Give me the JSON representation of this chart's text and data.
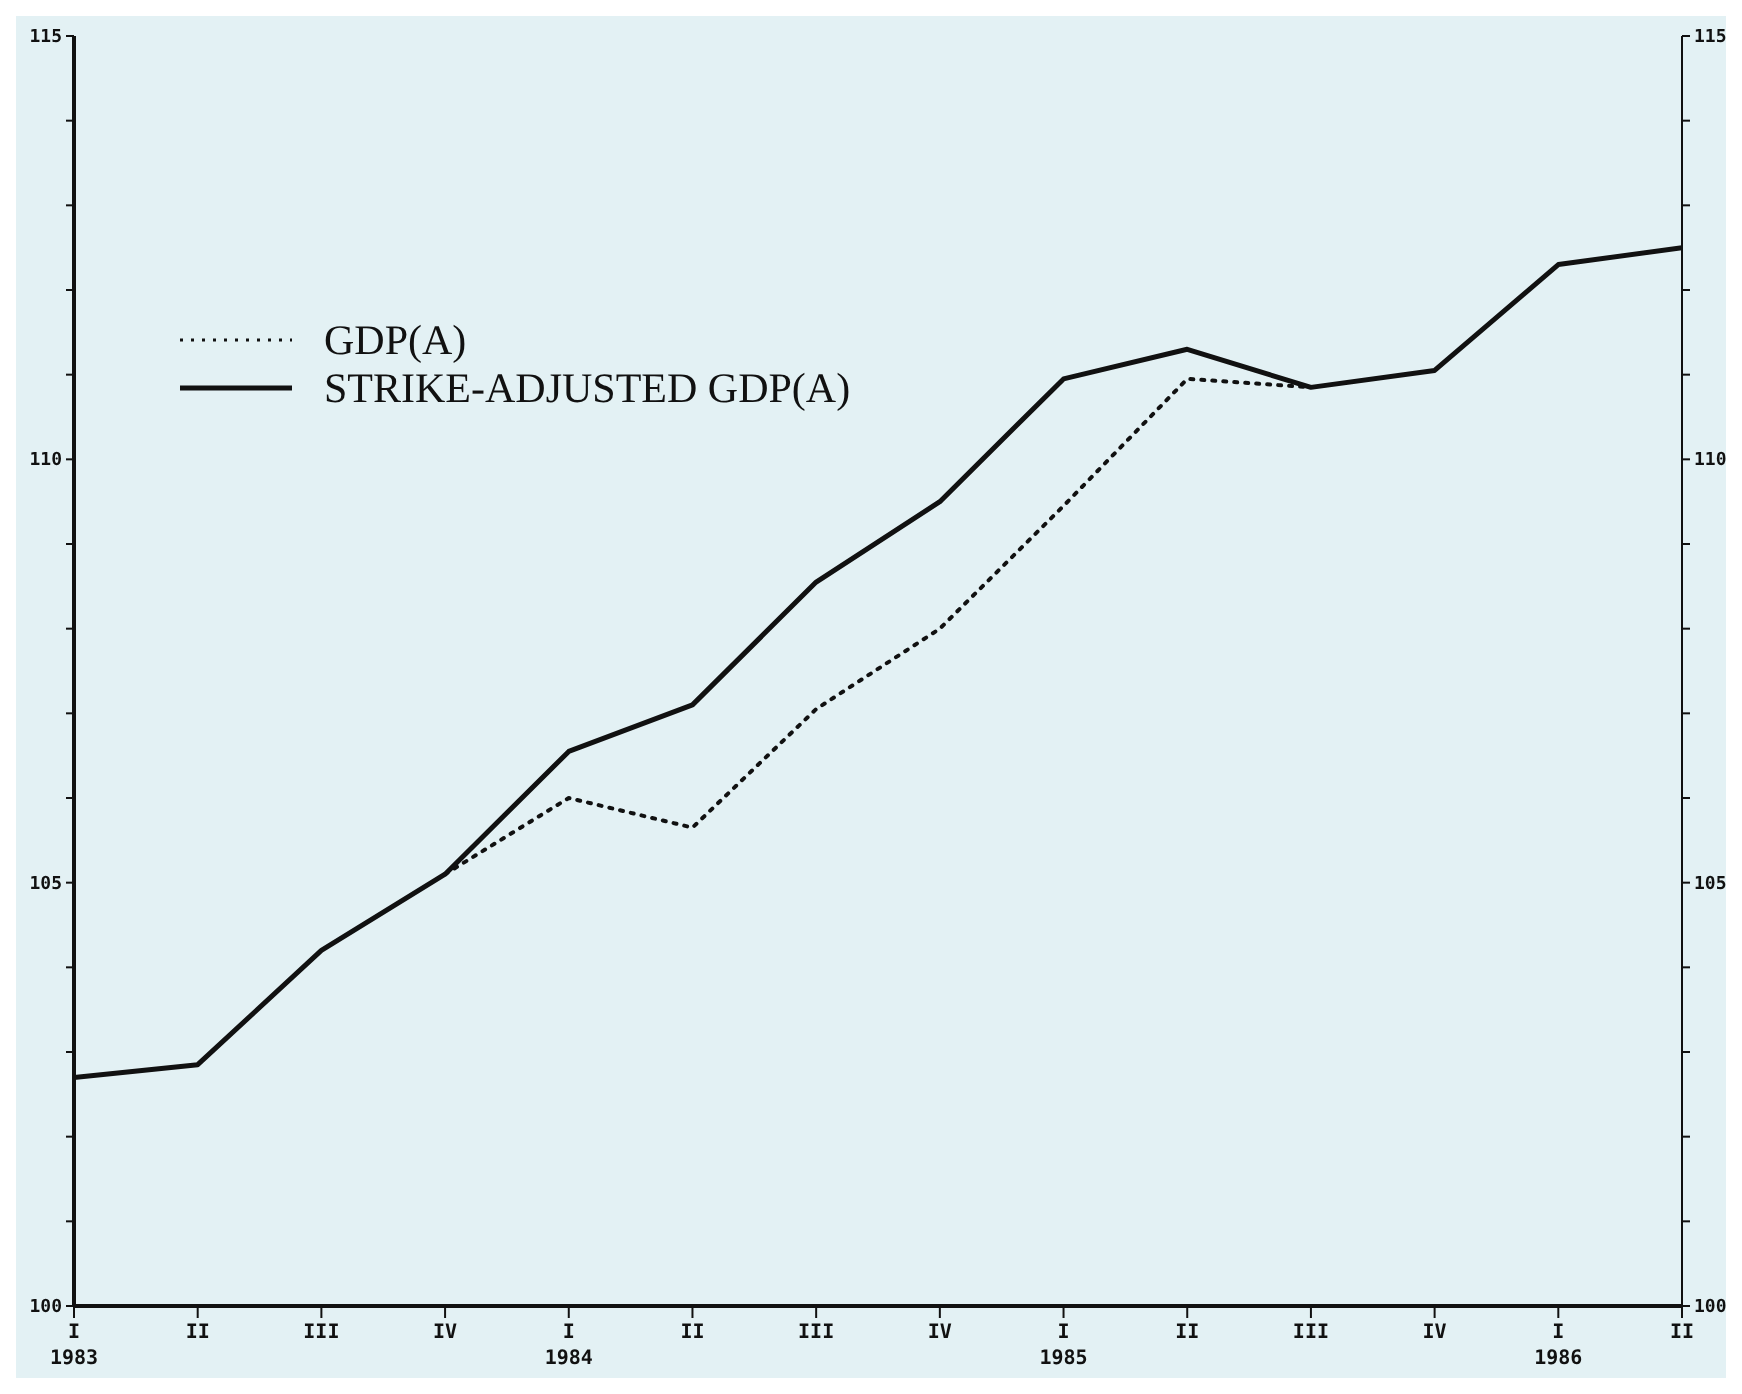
{
  "chart_data": {
    "type": "line",
    "categories": [
      "I\n1983",
      "II",
      "III",
      "IV",
      "I\n1984",
      "II",
      "III",
      "IV",
      "I\n1985",
      "II",
      "III",
      "IV",
      "I\n1986",
      "II"
    ],
    "series": [
      {
        "name": "GDP(A)",
        "color": "#111111",
        "line_style": "dotted",
        "values": [
          null,
          null,
          null,
          105.1,
          106.0,
          105.65,
          107.05,
          108.0,
          109.45,
          110.95,
          110.85,
          null,
          null,
          null
        ]
      },
      {
        "name": "STRIKE-ADJUSTED GDP(A)",
        "color": "#111111",
        "line_style": "solid",
        "values": [
          102.7,
          102.85,
          104.2,
          105.1,
          106.55,
          107.1,
          108.55,
          109.5,
          110.95,
          111.3,
          110.85,
          111.05,
          112.3,
          112.5
        ]
      }
    ],
    "ylim": [
      100,
      115
    ],
    "yticks": [
      100,
      {
        "value": 101,
        "label": null
      },
      {
        "value": 102,
        "label": null
      },
      {
        "value": 103,
        "label": null
      },
      {
        "value": 104,
        "label": null
      },
      105,
      {
        "value": 106,
        "label": null
      },
      {
        "value": 107,
        "label": null
      },
      {
        "value": 108,
        "label": null
      },
      {
        "value": 109,
        "label": null
      },
      110,
      {
        "value": 111,
        "label": null
      },
      {
        "value": 112,
        "label": null
      },
      {
        "value": 113,
        "label": null
      },
      {
        "value": 114,
        "label": null
      },
      115
    ],
    "y2lim": [
      100,
      115
    ],
    "y2ticks": [
      100,
      {
        "value": 101,
        "label": null
      },
      {
        "value": 102,
        "label": null
      },
      {
        "value": 103,
        "label": null
      },
      {
        "value": 104,
        "label": null
      },
      105,
      {
        "value": 106,
        "label": null
      },
      {
        "value": 107,
        "label": null
      },
      {
        "value": 108,
        "label": null
      },
      {
        "value": 109,
        "label": null
      },
      110,
      {
        "value": 111,
        "label": null
      },
      {
        "value": 112,
        "label": null
      },
      {
        "value": 113,
        "label": null
      },
      {
        "value": 114,
        "label": null
      },
      115
    ],
    "legend": "top left",
    "marker": "none"
  }
}
